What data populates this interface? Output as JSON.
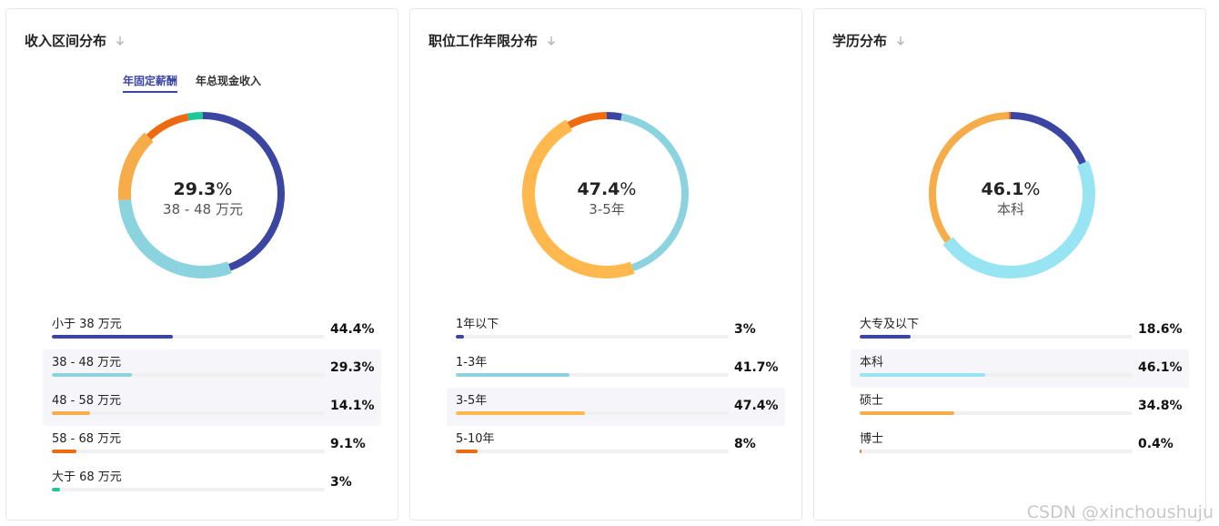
{
  "colors": {
    "navy": "#3b46a3",
    "teal": "#8bd3de",
    "sky": "#97e4f2",
    "orange": "#f7ac4a",
    "amber": "#ffb84d",
    "dark_orange": "#ee6a10",
    "green": "#1ec796"
  },
  "panels": [
    {
      "title": "收入区间分布",
      "sort_icon": "arrow-down-icon",
      "tabs": [
        {
          "label": "年固定薪酬",
          "active": true
        },
        {
          "label": "年总现金收入",
          "active": false
        }
      ],
      "center": {
        "value": "29.3",
        "unit": "%",
        "label": "38 - 48 万元"
      },
      "rows": [
        {
          "label": "小于 38 万元",
          "value_text": "44.4%",
          "value": 44.4,
          "color": "#3b46a3",
          "highlight": false
        },
        {
          "label": "38 - 48 万元",
          "value_text": "29.3%",
          "value": 29.3,
          "color": "#8bd3de",
          "highlight": true
        },
        {
          "label": "48 - 58 万元",
          "value_text": "14.1%",
          "value": 14.1,
          "color": "#f7ac4a",
          "highlight": true
        },
        {
          "label": "58 - 68 万元",
          "value_text": "9.1%",
          "value": 9.1,
          "color": "#ee6a10",
          "highlight": false
        },
        {
          "label": "大于 68 万元",
          "value_text": "3%",
          "value": 3,
          "color": "#1ec796",
          "highlight": false
        }
      ]
    },
    {
      "title": "职位工作年限分布",
      "sort_icon": "arrow-down-icon",
      "tabs": [],
      "center": {
        "value": "47.4",
        "unit": "%",
        "label": "3-5年"
      },
      "rows": [
        {
          "label": "1年以下",
          "value_text": "3%",
          "value": 3,
          "color": "#3b46a3",
          "highlight": false
        },
        {
          "label": "1-3年",
          "value_text": "41.7%",
          "value": 41.7,
          "color": "#8bd3de",
          "highlight": false
        },
        {
          "label": "3-5年",
          "value_text": "47.4%",
          "value": 47.4,
          "color": "#ffb84d",
          "highlight": true
        },
        {
          "label": "5-10年",
          "value_text": "8%",
          "value": 8,
          "color": "#ee6a10",
          "highlight": false
        }
      ]
    },
    {
      "title": "学历分布",
      "sort_icon": "arrow-down-icon",
      "tabs": [],
      "center": {
        "value": "46.1",
        "unit": "%",
        "label": "本科"
      },
      "rows": [
        {
          "label": "大专及以下",
          "value_text": "18.6%",
          "value": 18.6,
          "color": "#3b46a3",
          "highlight": false
        },
        {
          "label": "本科",
          "value_text": "46.1%",
          "value": 46.1,
          "color": "#97e4f2",
          "highlight": true
        },
        {
          "label": "硕士",
          "value_text": "34.8%",
          "value": 34.8,
          "color": "#f7ac4a",
          "highlight": false
        },
        {
          "label": "博士",
          "value_text": "0.4%",
          "value": 0.4,
          "color": "#ee6a10",
          "highlight": false
        }
      ]
    }
  ],
  "watermark": "CSDN @xinchoushuju"
}
